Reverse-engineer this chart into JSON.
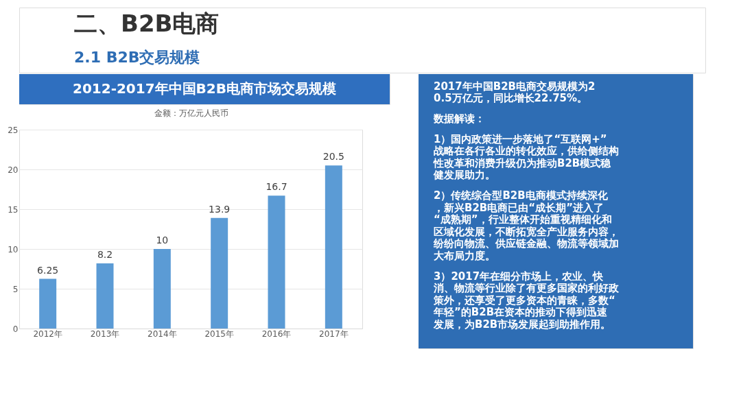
{
  "chart_data": [
    {
      "type": "bar",
      "title": "2012-2017年中国B2B电商市场交易规模",
      "ylabel": "金额：万亿元人民币",
      "annotations": [
        "二、B2B电商",
        "2.1 B2B交易规模"
      ],
      "categories": [
        "2012年",
        "2013年",
        "2014年",
        "2015年",
        "2016年",
        "2017年"
      ],
      "values": [
        6.25,
        8.2,
        10,
        13.9,
        16.7,
        20.5
      ],
      "color": "#5b9bd5",
      "ylim": [
        0,
        25
      ],
      "yticks": [
        0,
        5,
        10,
        15,
        20,
        25
      ],
      "grid": "y",
      "data_labels": true
    },
    {
      "type": "other",
      "annotations": [
        "2017年中国B2B电商交易规模为20.5万亿元，同比增长22.75%。",
        "数据解读：",
        "1）国内政策进一步落地了“互联网+”战略在各行各业的转化效应，供给侧结构性改革和消费升级仍为推动B2B模式稳健发展助力。",
        "2）传统综合型B2B电商模式持续深化，新兴B2B电商已由“成长期”进入了“成熟期”，行业整体开始重视精细化和区域化发展，不断拓宽全产业服务内容，纷纷向物流、供应链金融、物流等领域加大布局力度。",
        "3）2017年在细分市场上，农业、快消、物流等行业除了有更多国家的利好政策外，还享受了更多资本的青睐，多数“年轻”的B2B在资本的推动下得到迅速发展，为B2B市场发展起到助推作用。"
      ]
    }
  ]
}
